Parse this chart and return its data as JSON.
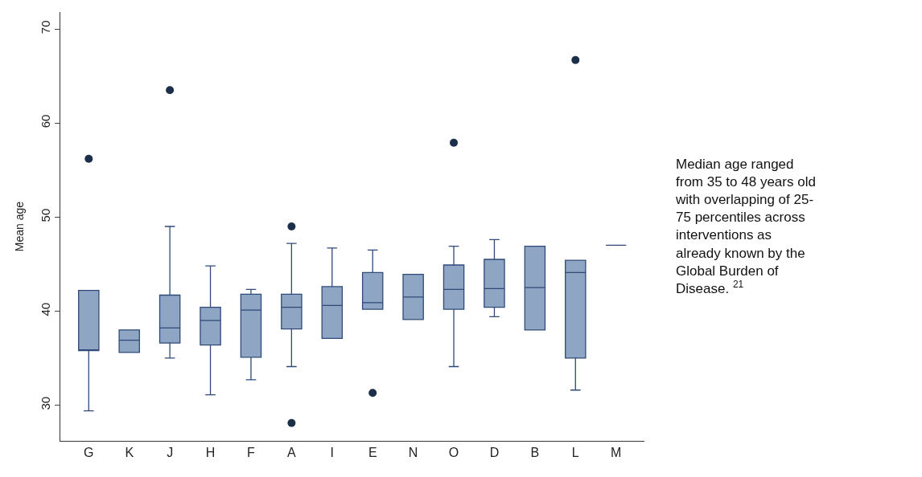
{
  "chart_data": {
    "type": "box",
    "ylabel": "Mean age",
    "categories": [
      "G",
      "K",
      "J",
      "H",
      "F",
      "A",
      "I",
      "E",
      "N",
      "O",
      "D",
      "B",
      "L",
      "M"
    ],
    "boxes": [
      {
        "low": 29.4,
        "q1": 35.8,
        "median": 35.8,
        "q3": 42.2,
        "high": 42.2,
        "outliers": [
          56.2
        ]
      },
      {
        "low": 35.6,
        "q1": 35.6,
        "median": 36.9,
        "q3": 38.0,
        "high": 38.0
      },
      {
        "low": 35.0,
        "q1": 36.6,
        "median": 38.2,
        "q3": 41.7,
        "high": 49.0,
        "outliers": [
          63.5
        ]
      },
      {
        "low": 31.1,
        "q1": 36.4,
        "median": 39.0,
        "q3": 40.4,
        "high": 44.8
      },
      {
        "low": 32.7,
        "q1": 35.1,
        "median": 40.1,
        "q3": 41.8,
        "high": 42.3
      },
      {
        "low": 34.1,
        "q1": 38.1,
        "median": 40.4,
        "q3": 41.8,
        "high": 47.2,
        "outliers": [
          49.0,
          28.1
        ]
      },
      {
        "low": 37.1,
        "q1": 37.1,
        "median": 40.6,
        "q3": 42.6,
        "high": 46.7
      },
      {
        "low": 40.2,
        "q1": 40.2,
        "median": 40.9,
        "q3": 44.1,
        "high": 46.5,
        "outliers": [
          31.3
        ]
      },
      {
        "low": 39.1,
        "q1": 39.1,
        "median": 41.5,
        "q3": 43.9,
        "high": 43.9
      },
      {
        "low": 34.1,
        "q1": 40.2,
        "median": 42.3,
        "q3": 44.9,
        "high": 46.9,
        "outliers": [
          57.9
        ]
      },
      {
        "low": 39.4,
        "q1": 40.4,
        "median": 42.4,
        "q3": 45.5,
        "high": 47.6
      },
      {
        "low": 38.0,
        "q1": 38.0,
        "median": 42.5,
        "q3": 46.9,
        "high": 46.9
      },
      {
        "low": 31.6,
        "q1": 35.0,
        "median": 44.1,
        "q3": 45.4,
        "high": 45.4,
        "outliers": [
          66.7
        ]
      },
      {
        "low": 47.0,
        "q1": 47.0,
        "median": 47.0,
        "q3": 47.0,
        "high": 47.0
      }
    ],
    "colors": [
      "#8fa5c4",
      "#8fa5c4",
      "#8fa5c4",
      "#8fa5c4",
      "#8fa5c4",
      "#8fa5c4",
      "#8fa5c4",
      "#8fa5c4",
      "#8fa5c4",
      "#8fa5c4",
      "#8fa5c4",
      "#8fa5c4",
      "#8fa5c4",
      "#2f4a78"
    ],
    "ylim": [
      26.2,
      71.8
    ],
    "yticks": [
      30,
      40,
      50,
      60,
      70
    ],
    "annotations": [
      "Median age ranged\nfrom 35 to 48 years old\nwith overlapping of 25-\n75 percentiles across\ninterventions as\nalready known by the\nGlobal Burden of\nDisease. $^{21}$"
    ]
  }
}
